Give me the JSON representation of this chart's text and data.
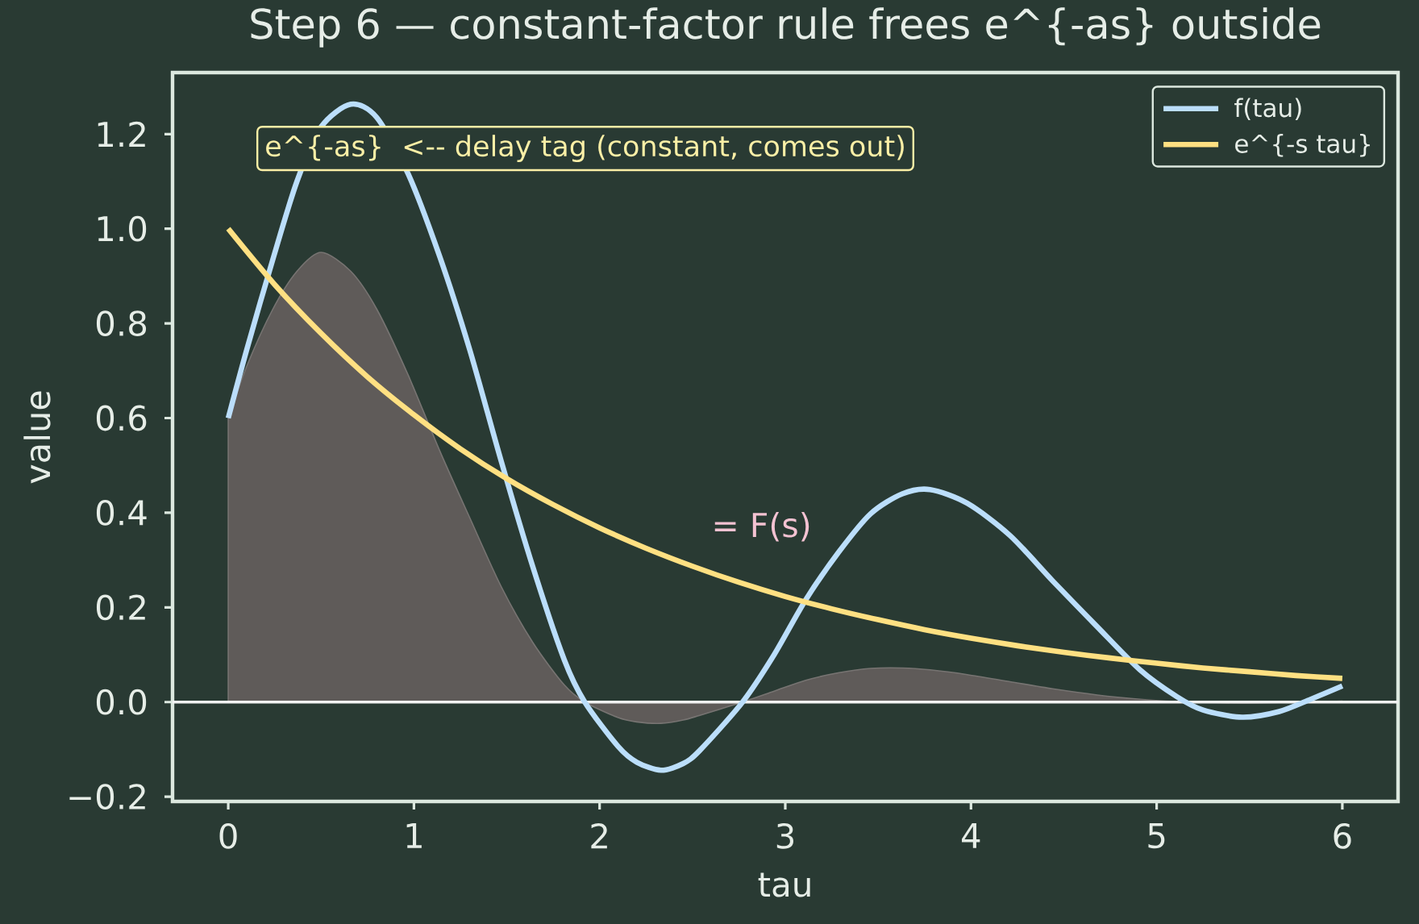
{
  "chart_data": {
    "type": "line",
    "title": "Step 6 — constant-factor rule frees e^{-as} outside",
    "xlabel": "tau",
    "ylabel": "value",
    "annotations": [
      "e^{-as}  <-- delay tag (constant, comes out)",
      "= F(s)"
    ],
    "series": [
      {
        "type": "area",
        "color": "#5f5b59",
        "x": [
          0,
          0.1,
          0.24,
          0.37,
          0.5,
          0.66,
          0.8,
          0.97,
          1.14,
          1.3,
          1.47,
          1.64,
          1.81,
          1.92,
          2.1,
          2.2,
          2.33,
          2.45,
          2.54,
          2.77,
          2.94,
          3.11,
          3.29,
          3.46,
          3.63,
          3.78,
          3.98,
          4.21,
          4.44,
          4.68,
          4.91,
          5.11,
          5.25,
          5.46,
          5.66,
          5.83,
          6.0
        ],
        "values": [
          0.6,
          0.71,
          0.83,
          0.91,
          0.95,
          0.91,
          0.83,
          0.69,
          0.53,
          0.39,
          0.244,
          0.126,
          0.036,
          0.0,
          -0.033,
          -0.042,
          -0.045,
          -0.038,
          -0.028,
          0.0,
          0.023,
          0.046,
          0.062,
          0.071,
          0.072,
          0.068,
          0.058,
          0.043,
          0.028,
          0.015,
          0.006,
          0.001,
          -0.001,
          -0.002,
          -0.001,
          0.0,
          0.002
        ]
      },
      {
        "name": "f(tau)",
        "color": "#bbdefb",
        "x": [
          0,
          0.1,
          0.24,
          0.37,
          0.5,
          0.66,
          0.8,
          0.97,
          1.14,
          1.3,
          1.47,
          1.64,
          1.81,
          1.92,
          2.1,
          2.2,
          2.33,
          2.45,
          2.54,
          2.77,
          2.94,
          3.11,
          3.29,
          3.46,
          3.63,
          3.78,
          3.98,
          4.21,
          4.44,
          4.68,
          4.91,
          5.11,
          5.25,
          5.46,
          5.66,
          5.83,
          6.0
        ],
        "values": [
          0.6,
          0.745,
          0.935,
          1.1,
          1.215,
          1.263,
          1.235,
          1.115,
          0.94,
          0.745,
          0.509,
          0.286,
          0.089,
          0.0,
          -0.094,
          -0.127,
          -0.144,
          -0.13,
          -0.102,
          0.0,
          0.1,
          0.216,
          0.318,
          0.398,
          0.44,
          0.449,
          0.42,
          0.352,
          0.256,
          0.159,
          0.068,
          0.011,
          -0.017,
          -0.032,
          -0.02,
          0.006,
          0.034
        ]
      },
      {
        "name": "e^{-s tau}",
        "color": "#ffe082",
        "x": [
          0,
          0.25,
          0.5,
          0.75,
          1,
          1.25,
          1.5,
          1.75,
          2,
          2.25,
          2.5,
          2.75,
          3,
          3.25,
          3.5,
          3.75,
          4,
          4.25,
          4.5,
          4.75,
          5,
          5.25,
          5.5,
          5.75,
          6
        ],
        "values": [
          1.0,
          0.882,
          0.779,
          0.687,
          0.607,
          0.535,
          0.472,
          0.417,
          0.368,
          0.325,
          0.287,
          0.253,
          0.223,
          0.197,
          0.174,
          0.153,
          0.135,
          0.119,
          0.105,
          0.093,
          0.082,
          0.072,
          0.064,
          0.056,
          0.05
        ]
      }
    ],
    "xlim": [
      -0.3,
      6.3
    ],
    "ylim": [
      -0.21,
      1.33
    ],
    "xticks": [
      0,
      1,
      2,
      3,
      4,
      5,
      6
    ],
    "yticks": [
      {
        "value": -0.2,
        "label": "−0.2"
      },
      {
        "value": 0,
        "label": "0.0"
      },
      {
        "value": 0.2,
        "label": "0.2"
      },
      {
        "value": 0.4,
        "label": "0.4"
      },
      {
        "value": 0.6,
        "label": "0.6"
      },
      {
        "value": 0.8,
        "label": "0.8"
      },
      {
        "value": 1.0,
        "label": "1.0"
      },
      {
        "value": 1.2,
        "label": "1.2"
      }
    ],
    "ref_lines": [
      {
        "axis": "y",
        "value": 0,
        "color": "#f2f2f2"
      }
    ],
    "legend": "top right"
  }
}
